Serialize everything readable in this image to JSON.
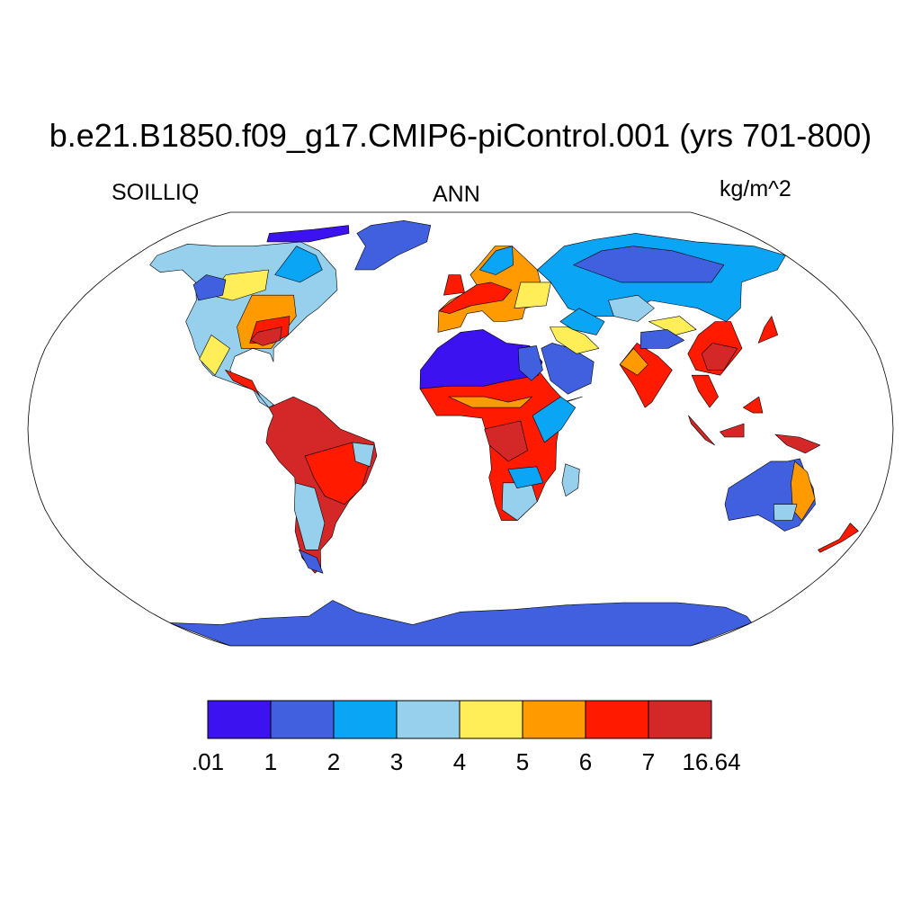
{
  "title": "b.e21.B1850.f09_g17.CMIP6-piControl.001 (yrs 701-800)",
  "subtitle_left": "SOILLIQ",
  "subtitle_center": "ANN",
  "subtitle_right": "kg/m^2",
  "colorbar": {
    "colors": [
      "#3d12f0",
      "#4060e0",
      "#0aa5f5",
      "#96d0ec",
      "#ffee58",
      "#ff9a00",
      "#ff1a00",
      "#d42828"
    ],
    "tick_labels": [
      ".01",
      "1",
      "2",
      "3",
      "4",
      "5",
      "6",
      "7",
      "16.64"
    ]
  },
  "map": {
    "projection": "robinson",
    "ocean_color": "#ffffff",
    "outline_color": "#000000"
  }
}
